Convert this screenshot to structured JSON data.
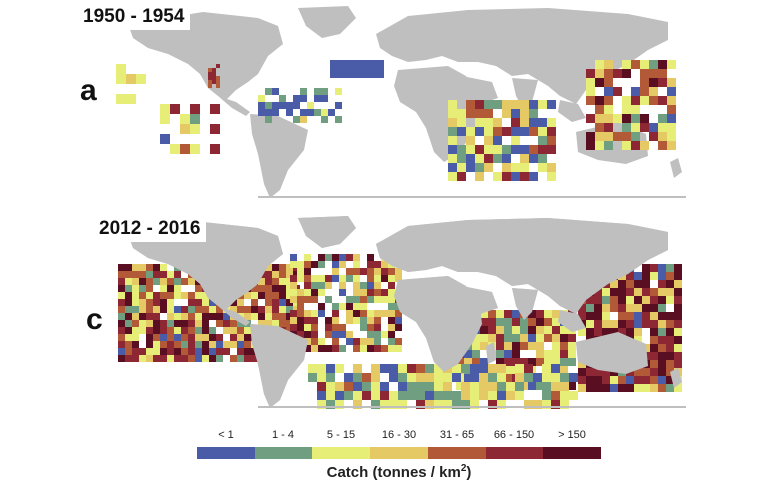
{
  "panels": [
    {
      "id": "a",
      "period": "1950 - 1954",
      "letter": "a"
    },
    {
      "id": "c",
      "period": "2012 - 2016",
      "letter": "c"
    }
  ],
  "legend": {
    "title_prefix": "Catch (tonnes / km",
    "title_sup": "2",
    "title_suffix": ")",
    "classes": [
      {
        "label": "< 1",
        "color": "#4a5ca8"
      },
      {
        "label": "1 - 4",
        "color": "#6f9e81"
      },
      {
        "label": "5 - 15",
        "color": "#e6ee78"
      },
      {
        "label": "16 - 30",
        "color": "#e4c965"
      },
      {
        "label": "31 - 65",
        "color": "#b25a37"
      },
      {
        "label": "66 - 150",
        "color": "#8c2733"
      },
      {
        "label": "> 150",
        "color": "#5a0e22"
      }
    ]
  },
  "colors": {
    "land": "#bfbfbf",
    "ocean": "#ffffff"
  }
}
